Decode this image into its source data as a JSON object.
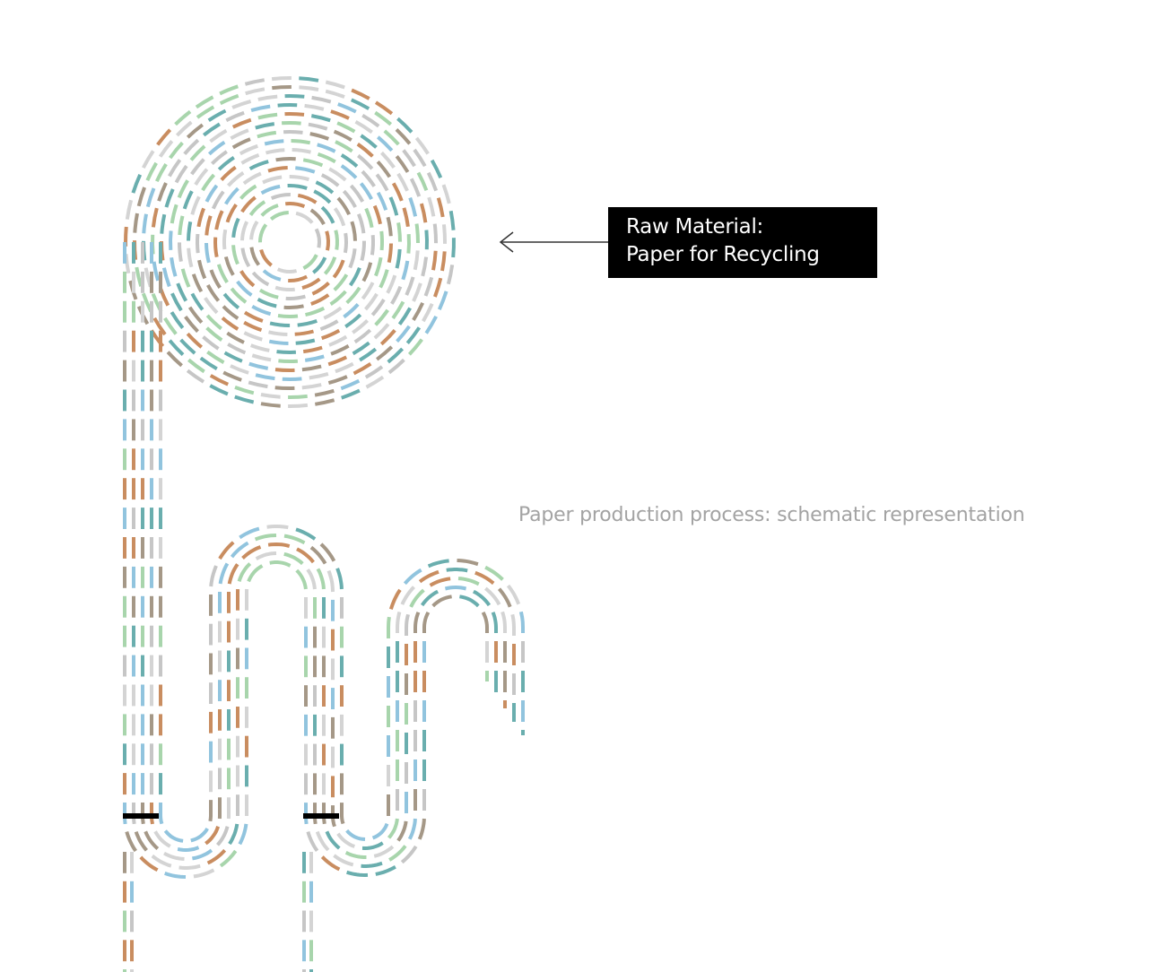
{
  "label": {
    "line1": "Raw Material:",
    "line2": "Paper for Recycling"
  },
  "caption": "Paper production process: schematic representation",
  "colors": {
    "palette": [
      "#d4d4d4",
      "#c98d60",
      "#6aaeae",
      "#a8d5ac",
      "#a59887",
      "#91c4de",
      "#c6c6c6"
    ],
    "label_bg": "#000000",
    "caption": "#a3a3a3",
    "marker": "#000000"
  },
  "icons": [
    "arrow-left-icon"
  ]
}
